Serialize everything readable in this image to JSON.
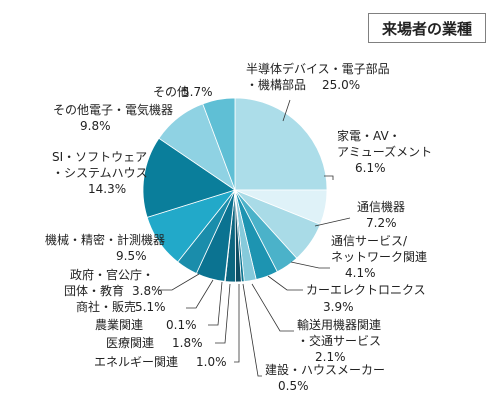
{
  "chart_data": {
    "type": "pie",
    "title": "来場者の業種",
    "slices": [
      {
        "label_lines": [
          "半導体デバイス・電子部品",
          "・機構部品"
        ],
        "value": 25.0,
        "value_text": "25.0%",
        "color": "#acdde9"
      },
      {
        "label_lines": [
          "家電・AV・",
          "アミューズメント"
        ],
        "value": 6.1,
        "value_text": "6.1%",
        "color": "#dff2f8"
      },
      {
        "label_lines": [
          "通信機器"
        ],
        "value": 7.2,
        "value_text": "7.2%",
        "color": "#a9dbe7"
      },
      {
        "label_lines": [
          "通信サービス/",
          "ネットワーク関連"
        ],
        "value": 4.1,
        "value_text": "4.1%",
        "color": "#4bb2c9"
      },
      {
        "label_lines": [
          "カーエレクトロニクス"
        ],
        "value": 3.9,
        "value_text": "3.9%",
        "color": "#1d94b1"
      },
      {
        "label_lines": [
          "輸送用機器関連",
          "・交通サービス"
        ],
        "value": 2.1,
        "value_text": "2.1%",
        "color": "#86cadb"
      },
      {
        "label_lines": [
          "建設・ハウスメーカー"
        ],
        "value": 0.5,
        "value_text": "0.5%",
        "color": "#0c7592"
      },
      {
        "label_lines": [
          "エネルギー関連"
        ],
        "value": 1.0,
        "value_text": "1.0%",
        "color": "#0e4d63"
      },
      {
        "label_lines": [
          "医療関連"
        ],
        "value": 1.8,
        "value_text": "1.8%",
        "color": "#0c6680"
      },
      {
        "label_lines": [
          "農業関連"
        ],
        "value": 0.1,
        "value_text": "0.1%",
        "color": "#0e3f52"
      },
      {
        "label_lines": [
          "商社・販売"
        ],
        "value": 5.1,
        "value_text": "5.1%",
        "color": "#0b7391"
      },
      {
        "label_lines": [
          "政府・官公庁・",
          "団体・教育"
        ],
        "value": 3.8,
        "value_text": "3.8%",
        "color": "#1a8dab"
      },
      {
        "label_lines": [
          "機械・精密・計測機器"
        ],
        "value": 9.5,
        "value_text": "9.5%",
        "color": "#22a9c9"
      },
      {
        "label_lines": [
          "SI・ソフトウェア",
          "・システムハウス"
        ],
        "value": 14.3,
        "value_text": "14.3%",
        "color": "#0a7e9b"
      },
      {
        "label_lines": [
          "その他電子・電気機器"
        ],
        "value": 9.8,
        "value_text": "9.8%",
        "color": "#8fd2e3"
      },
      {
        "label_lines": [
          "その他"
        ],
        "value": 5.7,
        "value_text": "5.7%",
        "color": "#5fbfd5"
      }
    ]
  }
}
